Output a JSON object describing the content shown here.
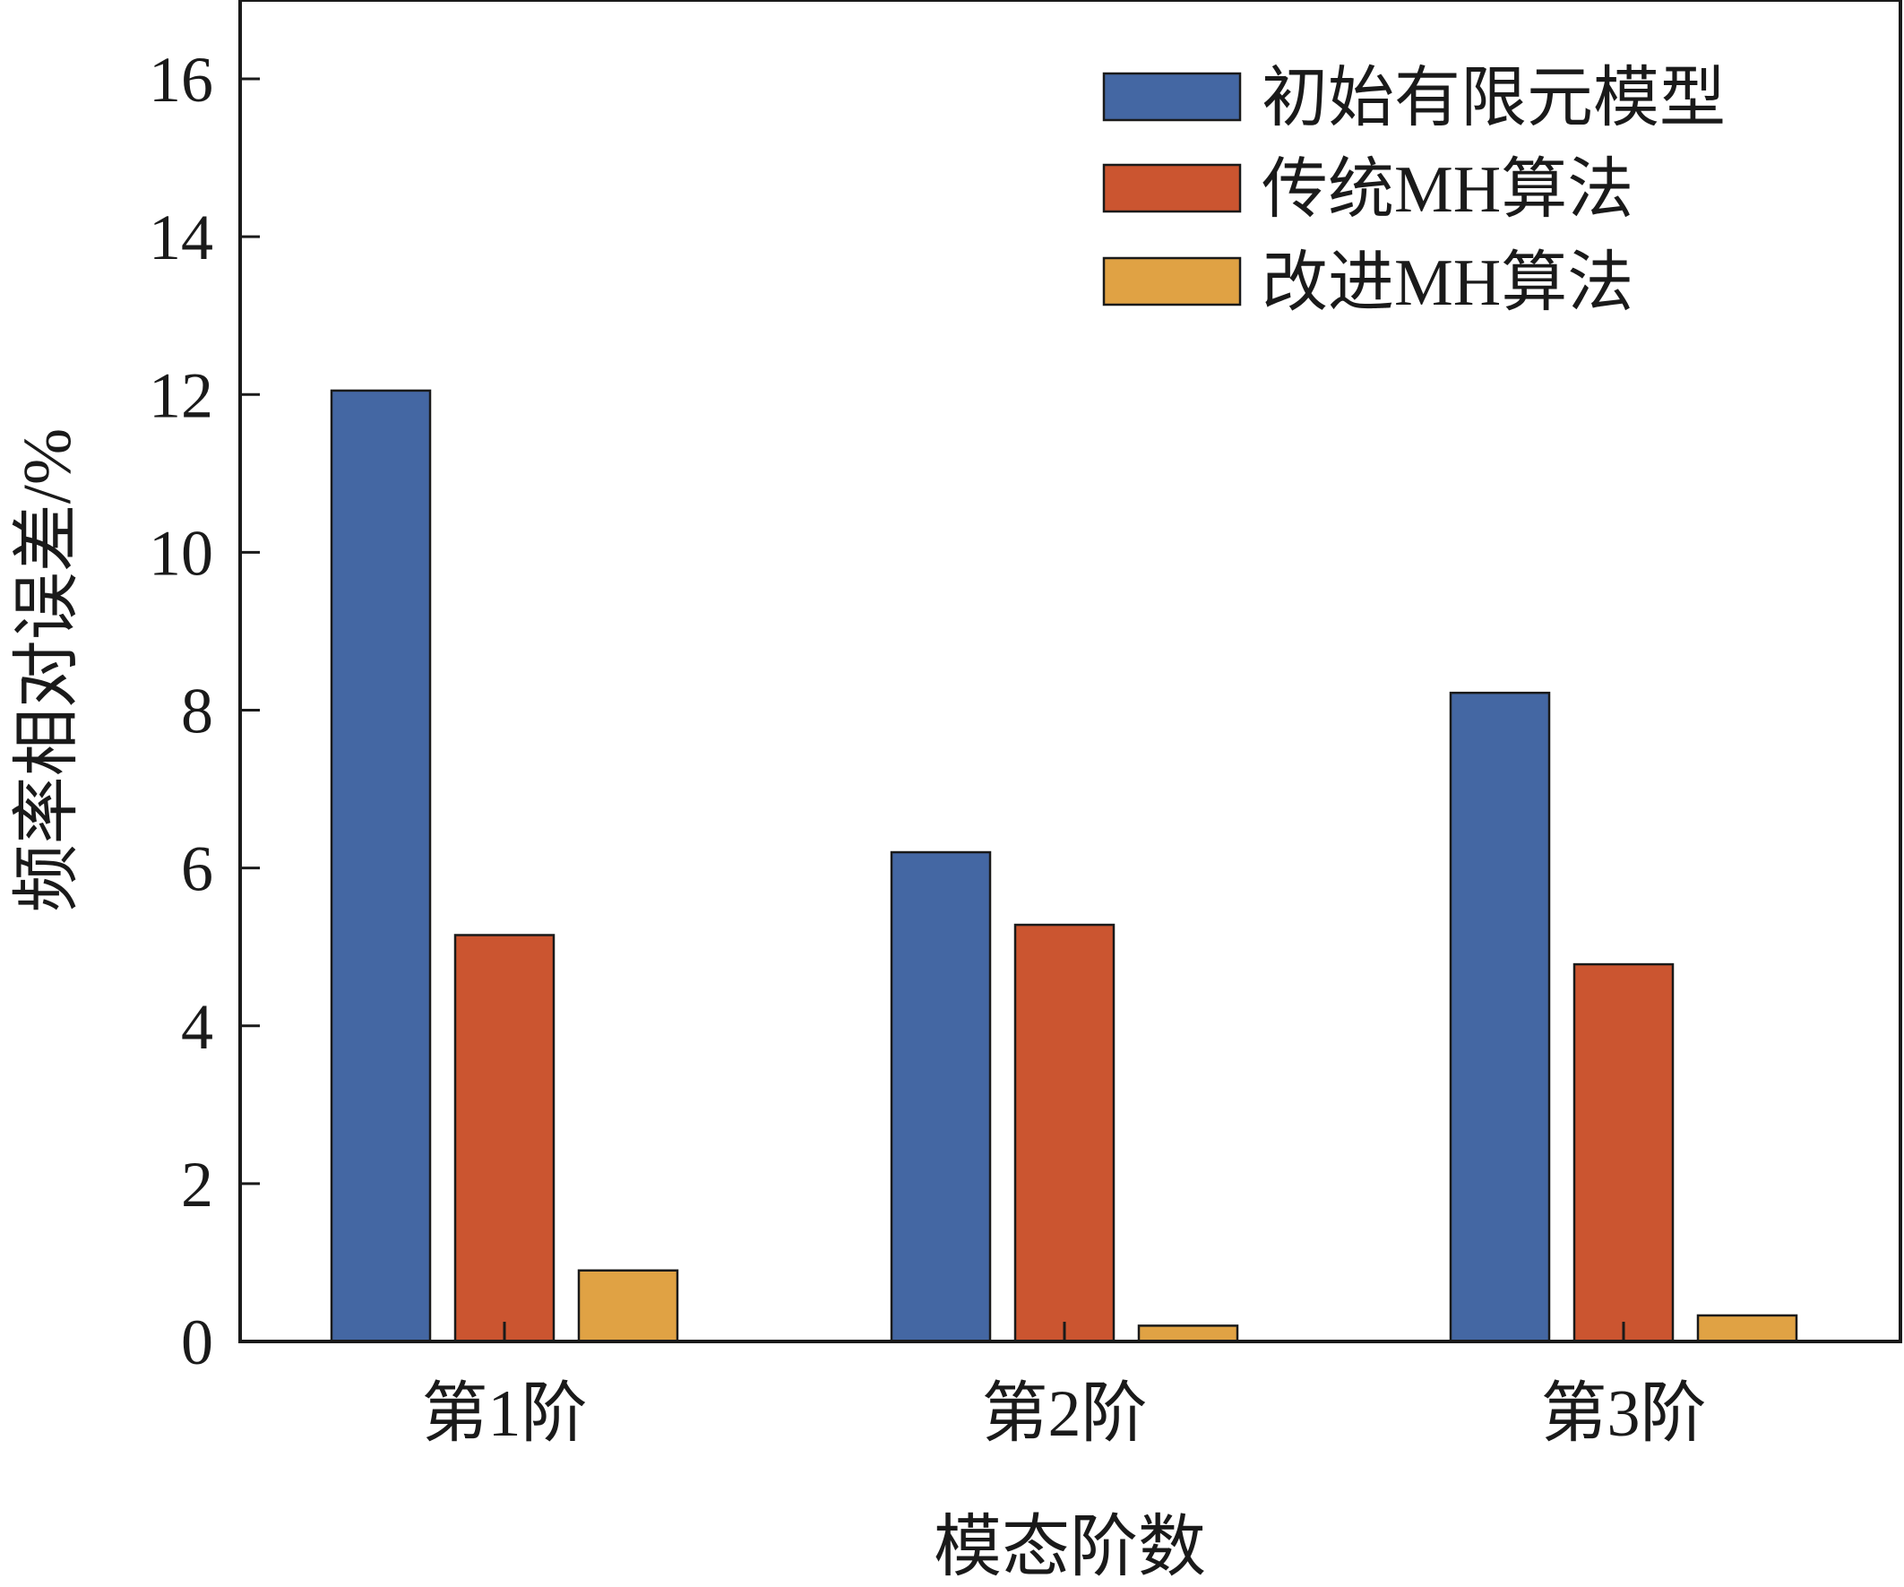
{
  "chart_data": {
    "type": "bar",
    "xlabel": "模态阶数",
    "ylabel": "频率相对误差/%",
    "categories": [
      "第1阶",
      "第2阶",
      "第3阶"
    ],
    "series": [
      {
        "name": "初始有限元模型",
        "color": "#4467a3",
        "values": [
          12.05,
          6.2,
          8.22
        ]
      },
      {
        "name": "传统MH算法",
        "color": "#cb5530",
        "values": [
          5.15,
          5.28,
          4.78
        ]
      },
      {
        "name": "改进MH算法",
        "color": "#e0a244",
        "values": [
          0.9,
          0.2,
          0.33
        ]
      }
    ],
    "ylim": [
      0,
      17
    ],
    "yticks": [
      0,
      2,
      4,
      6,
      8,
      10,
      12,
      14,
      16
    ],
    "legend_position": "top-right",
    "grid": false
  }
}
